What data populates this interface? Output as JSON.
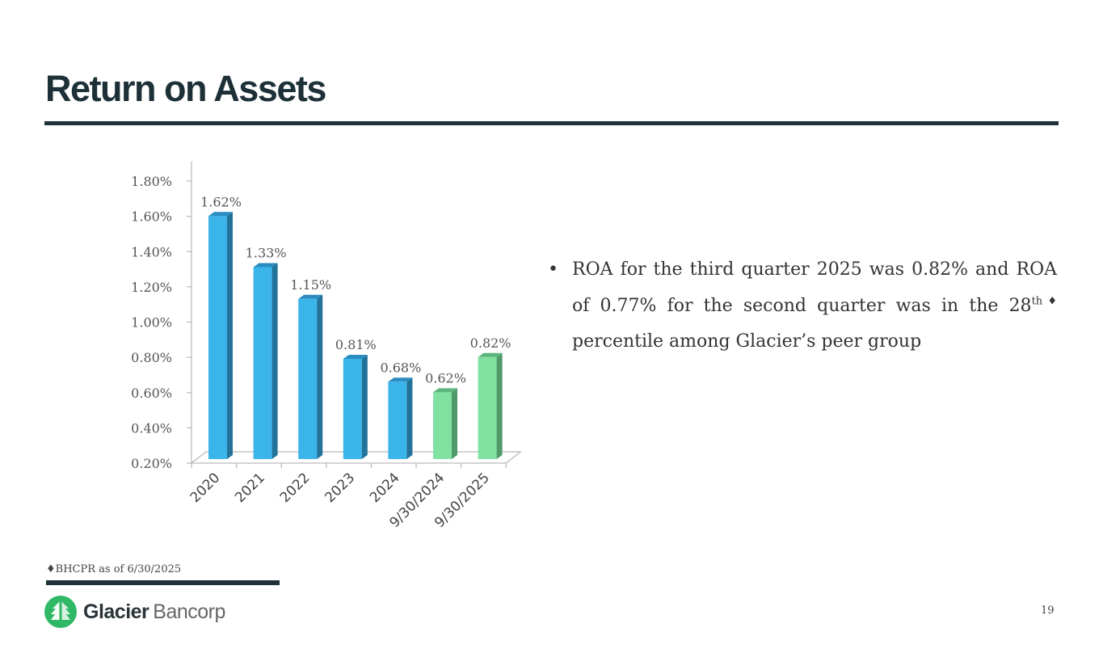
{
  "title": "Return on Assets",
  "bullet": {
    "before": "ROA for the third quarter 2025 was 0.82% and ROA of 0.77% for the second quarter was in the 28",
    "sup": "th♦",
    "after": " percentile among Glacier’s peer group"
  },
  "footnote": "♦BHCPR as of 6/30/2025",
  "logo": {
    "bold": "Glacier",
    "light": "Bancorp"
  },
  "page_number": "19",
  "colors": {
    "blue": "#3bb4e9",
    "blue_side": "#22729a",
    "blue_top": "#2a8cc0",
    "green": "#80e1a1",
    "green_side": "#4f9a6b",
    "green_top": "#5cb57c",
    "dark": "#1d3038"
  },
  "chart_data": {
    "type": "bar",
    "style": "3d-column",
    "categories": [
      "2020",
      "2021",
      "2022",
      "2023",
      "2024",
      "9/30/2024",
      "9/30/2025"
    ],
    "values": [
      1.62,
      1.33,
      1.15,
      0.81,
      0.68,
      0.62,
      0.82
    ],
    "data_labels": [
      "1.62%",
      "1.33%",
      "1.15%",
      "0.81%",
      "0.68%",
      "0.62%",
      "0.82%"
    ],
    "bar_colors": [
      "blue",
      "blue",
      "blue",
      "blue",
      "blue",
      "green",
      "green"
    ],
    "ylim": [
      0.2,
      1.8
    ],
    "yticks": [
      0.2,
      0.4,
      0.6,
      0.8,
      1.0,
      1.2,
      1.4,
      1.6,
      1.8
    ],
    "ytick_labels": [
      "0.20%",
      "0.40%",
      "0.60%",
      "0.80%",
      "1.00%",
      "1.20%",
      "1.40%",
      "1.60%",
      "1.80%"
    ],
    "xlabel": "",
    "ylabel": "",
    "grid": false,
    "legend": "none"
  }
}
